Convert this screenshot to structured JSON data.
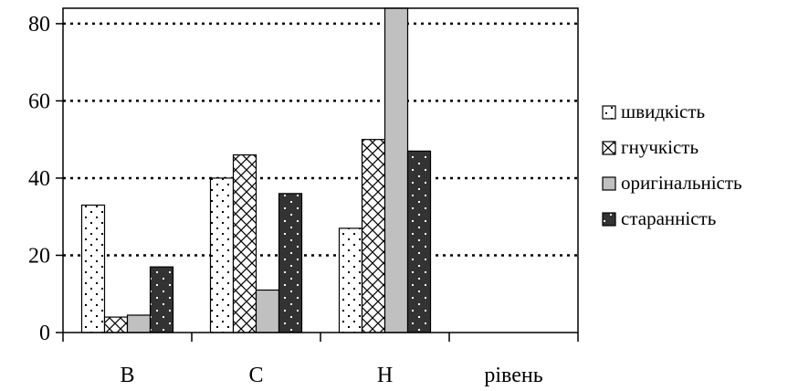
{
  "chart_data": {
    "type": "bar",
    "title": "",
    "xlabel": "",
    "ylabel": "",
    "categories": [
      "В",
      "С",
      "Н",
      "рівень"
    ],
    "ylim": [
      0,
      84
    ],
    "yticks": [
      0,
      20,
      40,
      60,
      80
    ],
    "grid": "horizontal-dotted",
    "legend_position": "right",
    "series": [
      {
        "name": "швидкість",
        "values": [
          33,
          40,
          27,
          null
        ],
        "pattern": "dots-on-white",
        "color": "#ffffff"
      },
      {
        "name": "гнучкість",
        "values": [
          4,
          46,
          50,
          null
        ],
        "pattern": "crosshatch",
        "color": "#ffffff"
      },
      {
        "name": "оригінальність",
        "values": [
          4.5,
          11,
          84,
          null
        ],
        "pattern": "solid",
        "color": "#c0c0c0"
      },
      {
        "name": "старанність",
        "values": [
          17,
          36,
          47,
          null
        ],
        "pattern": "dots-on-dark",
        "color": "#333333"
      }
    ]
  }
}
